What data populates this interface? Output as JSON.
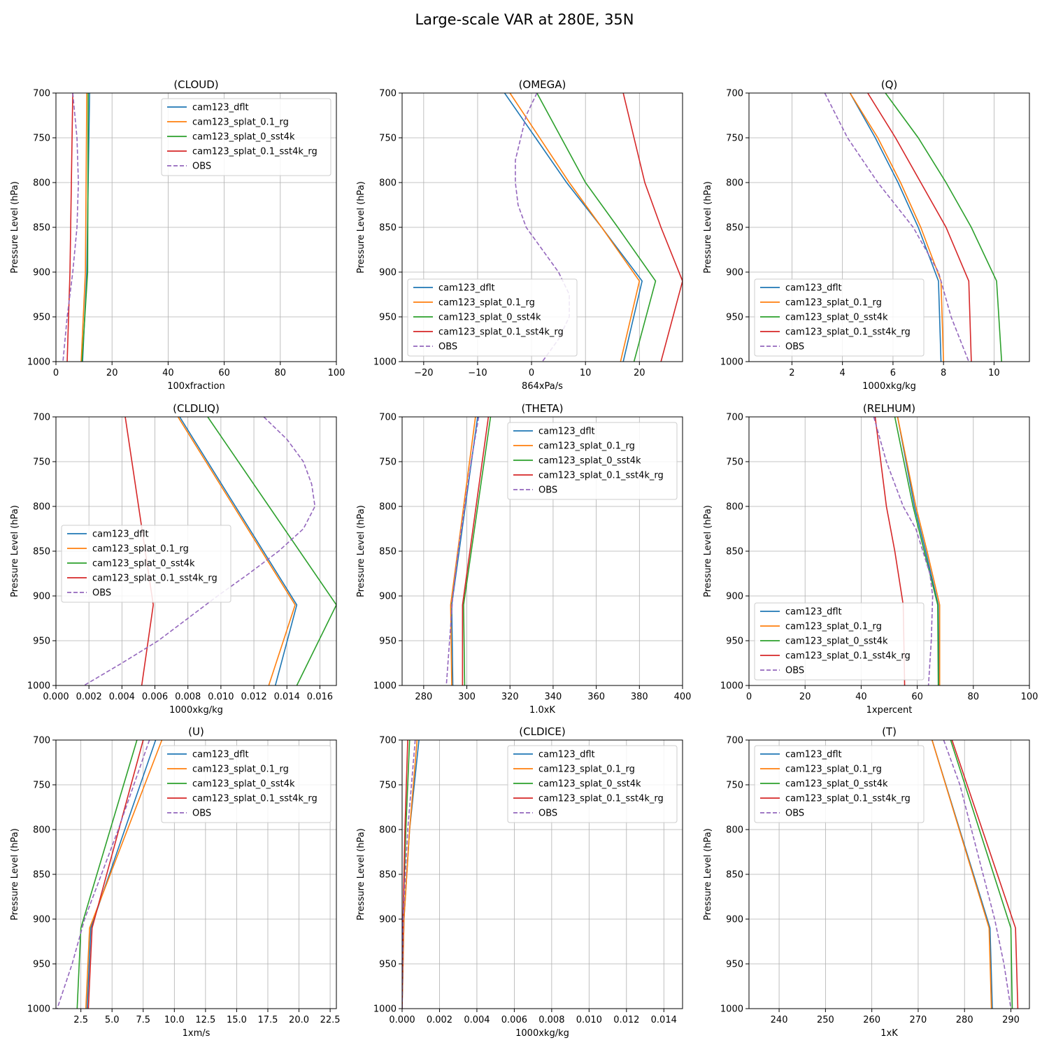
{
  "figure": {
    "title": "Large-scale VAR at 280E, 35N",
    "ylabel": "Pressure Level (hPa)"
  },
  "series_styles": {
    "cam123_dflt": {
      "color": "#1f77b4",
      "dash": false
    },
    "cam123_splat_0.1_rg": {
      "color": "#ff7f0e",
      "dash": false
    },
    "cam123_splat_0_sst4k": {
      "color": "#2ca02c",
      "dash": false
    },
    "cam123_splat_0.1_sst4k_rg": {
      "color": "#d62728",
      "dash": false
    },
    "OBS": {
      "color": "#9467bd",
      "dash": true
    }
  },
  "chart_data": [
    {
      "type": "line",
      "title": "(CLOUD)",
      "xlabel": "100xfraction",
      "ylabel": "Pressure Level (hPa)",
      "xlim": [
        0,
        100
      ],
      "ylim": [
        1000,
        700
      ],
      "xticks": [
        "0",
        "20",
        "40",
        "60",
        "80",
        "100"
      ],
      "xtick_values": [
        0,
        20,
        40,
        60,
        80,
        100
      ],
      "yticks": [
        "700",
        "750",
        "800",
        "850",
        "900",
        "950",
        "1000"
      ],
      "grid": true,
      "legend": "upper-right",
      "series": [
        {
          "name": "cam123_dflt",
          "p": [
            700,
            900,
            1000
          ],
          "x": [
            12.0,
            11.0,
            9.5
          ]
        },
        {
          "name": "cam123_splat_0.1_rg",
          "p": [
            700,
            900,
            1000
          ],
          "x": [
            11.0,
            10.5,
            9.0
          ]
        },
        {
          "name": "cam123_splat_0_sst4k",
          "p": [
            700,
            900,
            1000
          ],
          "x": [
            11.5,
            11.3,
            9.3
          ]
        },
        {
          "name": "cam123_splat_0.1_sst4k_rg",
          "p": [
            700,
            900,
            1000
          ],
          "x": [
            6.0,
            5.0,
            4.0
          ]
        },
        {
          "name": "OBS",
          "p": [
            700,
            750,
            800,
            850,
            900,
            950,
            1000
          ],
          "x": [
            6.0,
            7.5,
            8.0,
            7.5,
            6.0,
            4.0,
            2.5
          ]
        }
      ]
    },
    {
      "type": "line",
      "title": "(OMEGA)",
      "xlabel": "864xPa/s",
      "ylabel": "Pressure Level (hPa)",
      "xlim": [
        -24,
        28
      ],
      "ylim": [
        1000,
        700
      ],
      "xticks": [
        "−20",
        "−10",
        "0",
        "10",
        "20"
      ],
      "xtick_values": [
        -20,
        -10,
        0,
        10,
        20
      ],
      "yticks": [
        "700",
        "750",
        "800",
        "850",
        "900",
        "950",
        "1000"
      ],
      "grid": true,
      "legend": "lower-left",
      "series": [
        {
          "name": "cam123_dflt",
          "p": [
            700,
            800,
            850,
            910,
            1000
          ],
          "x": [
            -5.0,
            6.5,
            13.0,
            20.5,
            17.0
          ]
        },
        {
          "name": "cam123_splat_0.1_rg",
          "p": [
            700,
            800,
            850,
            910,
            1000
          ],
          "x": [
            -4.0,
            7.0,
            13.0,
            20.0,
            16.5
          ]
        },
        {
          "name": "cam123_splat_0_sst4k",
          "p": [
            700,
            800,
            850,
            910,
            1000
          ],
          "x": [
            1.0,
            10.0,
            16.0,
            23.0,
            19.0
          ]
        },
        {
          "name": "cam123_splat_0.1_sst4k_rg",
          "p": [
            700,
            800,
            850,
            910,
            1000
          ],
          "x": [
            17.0,
            21.0,
            24.0,
            28.0,
            24.0
          ]
        },
        {
          "name": "OBS",
          "p": [
            700,
            725,
            775,
            800,
            825,
            850,
            875,
            900,
            925,
            950,
            975,
            1000
          ],
          "x": [
            1.0,
            -1.0,
            -3.0,
            -3.0,
            -2.5,
            -1.0,
            2.0,
            5.0,
            7.0,
            7.0,
            5.0,
            2.0
          ]
        }
      ]
    },
    {
      "type": "line",
      "title": "(Q)",
      "xlabel": "1000xkg/kg",
      "ylabel": "Pressure Level (hPa)",
      "xlim": [
        0.3,
        11.4
      ],
      "ylim": [
        1000,
        700
      ],
      "xticks": [
        "2",
        "4",
        "6",
        "8",
        "10"
      ],
      "xtick_values": [
        2,
        4,
        6,
        8,
        10
      ],
      "yticks": [
        "700",
        "750",
        "800",
        "850",
        "900",
        "950",
        "1000"
      ],
      "grid": true,
      "legend": "lower-left",
      "series": [
        {
          "name": "cam123_dflt",
          "p": [
            700,
            750,
            800,
            850,
            910,
            1000
          ],
          "x": [
            4.3,
            5.3,
            6.2,
            7.0,
            7.8,
            7.9
          ]
        },
        {
          "name": "cam123_splat_0.1_rg",
          "p": [
            700,
            750,
            800,
            850,
            910,
            1000
          ],
          "x": [
            4.3,
            5.4,
            6.3,
            7.1,
            7.9,
            8.0
          ]
        },
        {
          "name": "cam123_splat_0_sst4k",
          "p": [
            700,
            750,
            800,
            850,
            910,
            1000
          ],
          "x": [
            5.7,
            7.0,
            8.1,
            9.1,
            10.1,
            10.3
          ]
        },
        {
          "name": "cam123_splat_0.1_sst4k_rg",
          "p": [
            700,
            750,
            800,
            850,
            910,
            1000
          ],
          "x": [
            5.0,
            6.1,
            7.1,
            8.1,
            9.0,
            9.1
          ]
        },
        {
          "name": "OBS",
          "p": [
            700,
            750,
            800,
            850,
            900,
            950,
            1000
          ],
          "x": [
            3.3,
            4.2,
            5.4,
            6.8,
            7.8,
            8.3,
            9.0
          ]
        }
      ]
    },
    {
      "type": "line",
      "title": "(CLDLIQ)",
      "xlabel": "1000xkg/kg",
      "ylabel": "Pressure Level (hPa)",
      "xlim": [
        0,
        0.017
      ],
      "ylim": [
        1000,
        700
      ],
      "xticks": [
        "0.000",
        "0.002",
        "0.004",
        "0.006",
        "0.008",
        "0.010",
        "0.012",
        "0.014",
        "0.016"
      ],
      "xtick_values": [
        0,
        0.002,
        0.004,
        0.006,
        0.008,
        0.01,
        0.012,
        0.014,
        0.016
      ],
      "yticks": [
        "700",
        "750",
        "800",
        "850",
        "900",
        "950",
        "1000"
      ],
      "grid": true,
      "legend": "center-left",
      "series": [
        {
          "name": "cam123_dflt",
          "p": [
            700,
            910,
            1000
          ],
          "x": [
            0.0075,
            0.0146,
            0.0133
          ]
        },
        {
          "name": "cam123_splat_0.1_rg",
          "p": [
            700,
            910,
            1000
          ],
          "x": [
            0.0074,
            0.0145,
            0.0129
          ]
        },
        {
          "name": "cam123_splat_0_sst4k",
          "p": [
            700,
            910,
            1000
          ],
          "x": [
            0.0092,
            0.017,
            0.0146
          ]
        },
        {
          "name": "cam123_splat_0.1_sst4k_rg",
          "p": [
            700,
            910,
            1000
          ],
          "x": [
            0.0042,
            0.0059,
            0.0052
          ]
        },
        {
          "name": "OBS",
          "p": [
            700,
            725,
            750,
            775,
            800,
            825,
            850,
            875,
            900,
            925,
            950,
            975,
            1000
          ],
          "x": [
            0.0126,
            0.014,
            0.015,
            0.0155,
            0.0157,
            0.015,
            0.0135,
            0.0117,
            0.0098,
            0.008,
            0.0062,
            0.004,
            0.0017
          ]
        }
      ]
    },
    {
      "type": "line",
      "title": "(THETA)",
      "xlabel": "1.0xK",
      "ylabel": "Pressure Level (hPa)",
      "xlim": [
        270,
        400
      ],
      "ylim": [
        1000,
        700
      ],
      "xticks": [
        "280",
        "300",
        "320",
        "340",
        "360",
        "380",
        "400"
      ],
      "xtick_values": [
        280,
        300,
        320,
        340,
        360,
        380,
        400
      ],
      "yticks": [
        "700",
        "750",
        "800",
        "850",
        "900",
        "950",
        "1000"
      ],
      "grid": true,
      "legend": "upper-right",
      "series": [
        {
          "name": "cam123_dflt",
          "p": [
            700,
            910,
            1000
          ],
          "x": [
            305.0,
            293.0,
            293.5
          ]
        },
        {
          "name": "cam123_splat_0.1_rg",
          "p": [
            700,
            910,
            1000
          ],
          "x": [
            304.0,
            292.5,
            293.0
          ]
        },
        {
          "name": "cam123_splat_0_sst4k",
          "p": [
            700,
            910,
            1000
          ],
          "x": [
            311.0,
            298.5,
            299.0
          ]
        },
        {
          "name": "cam123_splat_0.1_sst4k_rg",
          "p": [
            700,
            910,
            1000
          ],
          "x": [
            310.0,
            298.0,
            298.0
          ]
        },
        {
          "name": "OBS",
          "p": [
            700,
            750,
            800,
            850,
            900,
            950,
            1000
          ],
          "x": [
            305.5,
            302.0,
            299.0,
            296.0,
            293.5,
            292.0,
            290.5
          ]
        }
      ]
    },
    {
      "type": "line",
      "title": "(RELHUM)",
      "xlabel": "1xpercent",
      "ylabel": "Pressure Level (hPa)",
      "xlim": [
        0,
        100
      ],
      "ylim": [
        1000,
        700
      ],
      "xticks": [
        "0",
        "20",
        "40",
        "60",
        "80",
        "100"
      ],
      "xtick_values": [
        0,
        20,
        40,
        60,
        80,
        100
      ],
      "yticks": [
        "700",
        "750",
        "800",
        "850",
        "900",
        "950",
        "1000"
      ],
      "grid": true,
      "legend": "lower-left",
      "series": [
        {
          "name": "cam123_dflt",
          "p": [
            700,
            800,
            850,
            910,
            1000
          ],
          "x": [
            53.0,
            59.0,
            63.0,
            67.5,
            67.8
          ]
        },
        {
          "name": "cam123_splat_0.1_rg",
          "p": [
            700,
            800,
            850,
            910,
            1000
          ],
          "x": [
            53.0,
            59.5,
            63.5,
            68.0,
            68.0
          ]
        },
        {
          "name": "cam123_splat_0_sst4k",
          "p": [
            700,
            800,
            850,
            910,
            1000
          ],
          "x": [
            52.0,
            58.5,
            62.5,
            67.3,
            67.5
          ]
        },
        {
          "name": "cam123_splat_0.1_sst4k_rg",
          "p": [
            700,
            800,
            850,
            910,
            1000
          ],
          "x": [
            45.0,
            49.0,
            52.0,
            55.0,
            55.5
          ]
        },
        {
          "name": "OBS",
          "p": [
            700,
            750,
            800,
            825,
            850,
            875,
            900,
            950,
            1000
          ],
          "x": [
            44.5,
            49.0,
            55.0,
            59.5,
            62.0,
            64.5,
            65.5,
            65.0,
            64.0
          ]
        }
      ]
    },
    {
      "type": "line",
      "title": "(U)",
      "xlabel": "1xm/s",
      "ylabel": "Pressure Level (hPa)",
      "xlim": [
        0.5,
        23
      ],
      "ylim": [
        1000,
        700
      ],
      "xticks": [
        "2.5",
        "5.0",
        "7.5",
        "10.0",
        "12.5",
        "15.0",
        "17.5",
        "20.0",
        "22.5"
      ],
      "xtick_values": [
        2.5,
        5.0,
        7.5,
        10.0,
        12.5,
        15.0,
        17.5,
        20.0,
        22.5
      ],
      "yticks": [
        "700",
        "750",
        "800",
        "850",
        "900",
        "950",
        "1000"
      ],
      "grid": true,
      "legend": "upper-right",
      "series": [
        {
          "name": "cam123_dflt",
          "p": [
            700,
            910,
            1000
          ],
          "x": [
            8.5,
            3.3,
            3.0
          ]
        },
        {
          "name": "cam123_splat_0.1_rg",
          "p": [
            700,
            910,
            1000
          ],
          "x": [
            9.0,
            3.2,
            2.9
          ]
        },
        {
          "name": "cam123_splat_0_sst4k",
          "p": [
            700,
            910,
            1000
          ],
          "x": [
            7.0,
            2.5,
            2.2
          ]
        },
        {
          "name": "cam123_splat_0.1_sst4k_rg",
          "p": [
            700,
            910,
            1000
          ],
          "x": [
            7.5,
            3.4,
            3.1
          ]
        },
        {
          "name": "OBS",
          "p": [
            700,
            800,
            900,
            950,
            1000
          ],
          "x": [
            8.0,
            5.5,
            2.8,
            1.8,
            0.6
          ]
        }
      ]
    },
    {
      "type": "line",
      "title": "(CLDICE)",
      "xlabel": "1000xkg/kg",
      "ylabel": "Pressure Level (hPa)",
      "xlim": [
        0,
        0.015
      ],
      "ylim": [
        1000,
        700
      ],
      "xticks": [
        "0.000",
        "0.002",
        "0.004",
        "0.006",
        "0.008",
        "0.010",
        "0.012",
        "0.014"
      ],
      "xtick_values": [
        0,
        0.002,
        0.004,
        0.006,
        0.008,
        0.01,
        0.012,
        0.014
      ],
      "yticks": [
        "700",
        "750",
        "800",
        "850",
        "900",
        "950",
        "1000"
      ],
      "grid": true,
      "legend": "upper-right",
      "series": [
        {
          "name": "cam123_dflt",
          "p": [
            700,
            800,
            900,
            1000
          ],
          "x": [
            0.0009,
            0.0004,
            0.0001,
            0.0
          ]
        },
        {
          "name": "cam123_splat_0.1_rg",
          "p": [
            700,
            800,
            900,
            1000
          ],
          "x": [
            0.0008,
            0.0004,
            0.0001,
            0.0
          ]
        },
        {
          "name": "cam123_splat_0_sst4k",
          "p": [
            700,
            800,
            900,
            1000
          ],
          "x": [
            0.0004,
            0.0002,
            5e-05,
            0.0
          ]
        },
        {
          "name": "cam123_splat_0.1_sst4k_rg",
          "p": [
            700,
            800,
            900,
            1000
          ],
          "x": [
            0.0003,
            0.00015,
            5e-05,
            0.0
          ]
        },
        {
          "name": "OBS",
          "p": [
            700,
            800,
            900,
            1000
          ],
          "x": [
            0.0007,
            0.0003,
            5e-05,
            0.0
          ]
        }
      ]
    },
    {
      "type": "line",
      "title": "(T)",
      "xlabel": "1xK",
      "ylabel": "Pressure Level (hPa)",
      "xlim": [
        233.5,
        294
      ],
      "ylim": [
        1000,
        700
      ],
      "xticks": [
        "240",
        "250",
        "260",
        "270",
        "280",
        "290"
      ],
      "xtick_values": [
        240,
        250,
        260,
        270,
        280,
        290
      ],
      "yticks": [
        "700",
        "750",
        "800",
        "850",
        "900",
        "950",
        "1000"
      ],
      "grid": true,
      "legend": "upper-left",
      "series": [
        {
          "name": "cam123_dflt",
          "p": [
            700,
            910,
            1000
          ],
          "x": [
            273.0,
            285.5,
            286.0
          ]
        },
        {
          "name": "cam123_splat_0.1_rg",
          "p": [
            700,
            910,
            1000
          ],
          "x": [
            273.0,
            285.3,
            285.8
          ]
        },
        {
          "name": "cam123_splat_0_sst4k",
          "p": [
            700,
            910,
            1000
          ],
          "x": [
            277.0,
            290.0,
            290.3
          ]
        },
        {
          "name": "cam123_splat_0.1_sst4k_rg",
          "p": [
            700,
            910,
            1000
          ],
          "x": [
            277.3,
            291.0,
            291.5
          ]
        },
        {
          "name": "OBS",
          "p": [
            700,
            750,
            800,
            850,
            900,
            950,
            1000
          ],
          "x": [
            275.5,
            279.0,
            281.5,
            284.0,
            286.5,
            288.5,
            290.0
          ]
        }
      ]
    }
  ]
}
